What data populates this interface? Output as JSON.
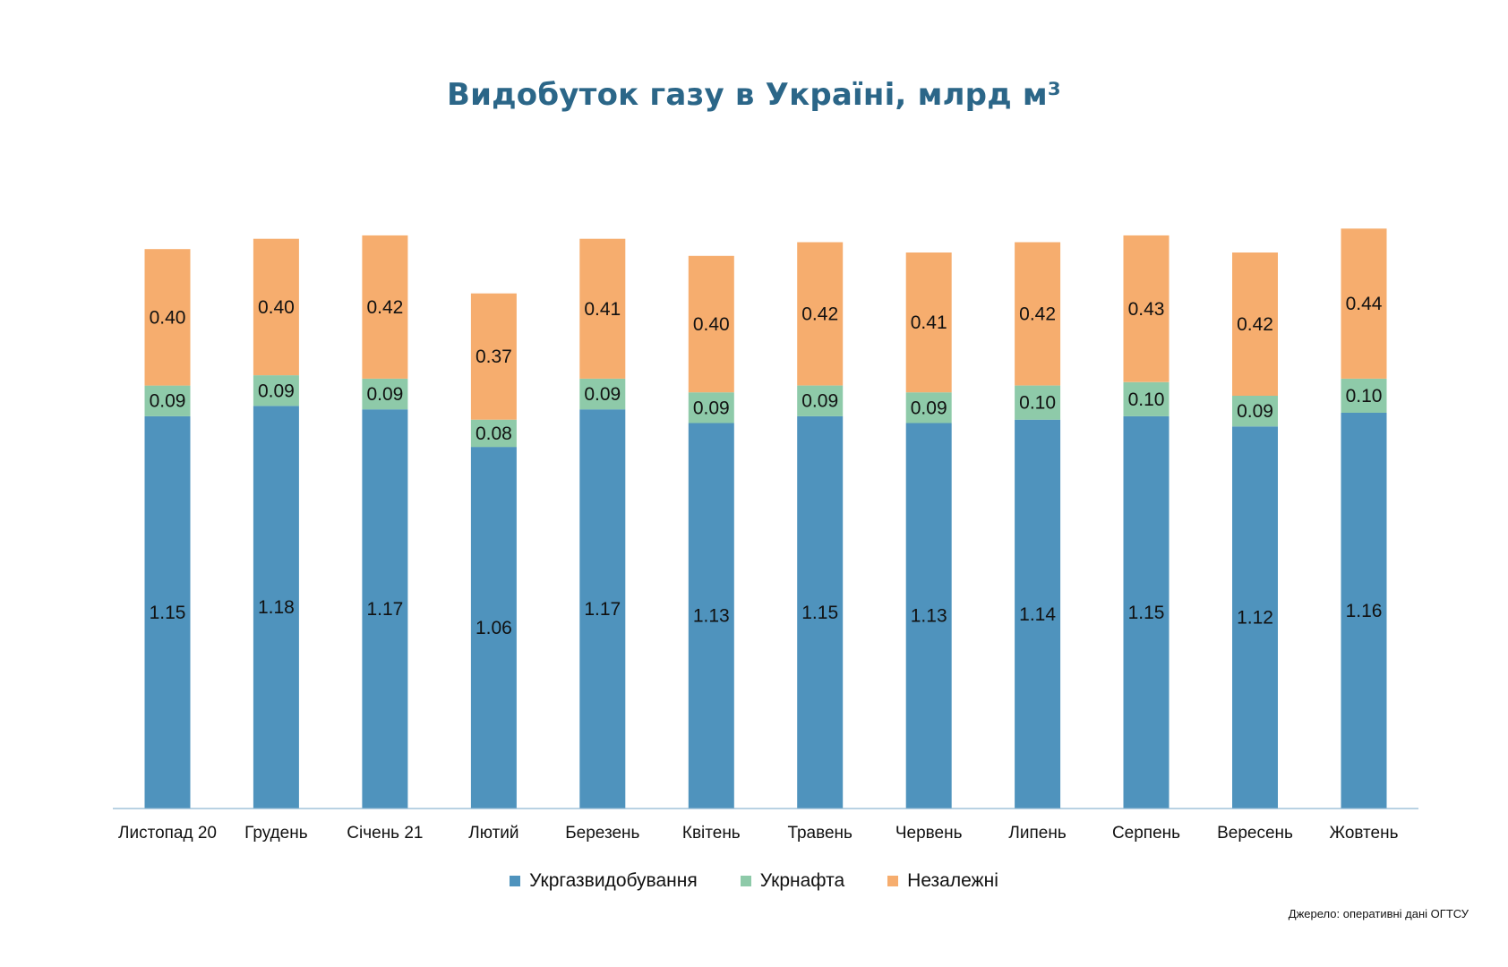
{
  "colors": {
    "title": "#2b6688",
    "axis": "#8fb7d2",
    "label_text": "#111111"
  },
  "legend": [
    {
      "name": "Укргазвидобування",
      "color": "#4f93bd"
    },
    {
      "name": "Укрнафта",
      "color": "#8ecaa9"
    },
    {
      "name": "Незалежні",
      "color": "#f6ad6e"
    }
  ],
  "source": "Джерело: оперативні дані ОГТСУ",
  "chart_data": {
    "type": "bar",
    "stacked": true,
    "title": "Видобуток газу в Україні, млрд м³",
    "xlabel": "",
    "ylabel": "",
    "ylim": [
      0,
      1.75
    ],
    "grid": false,
    "legend_position": "bottom",
    "categories": [
      "Листопад 20",
      "Грудень",
      "Січень 21",
      "Лютий",
      "Березень",
      "Квітень",
      "Травень",
      "Червень",
      "Липень",
      "Серпень",
      "Вересень",
      "Жовтень"
    ],
    "series": [
      {
        "name": "Укргазвидобування",
        "color": "#4f93bd",
        "values": [
          1.15,
          1.18,
          1.17,
          1.06,
          1.17,
          1.13,
          1.15,
          1.13,
          1.14,
          1.15,
          1.12,
          1.16
        ]
      },
      {
        "name": "Укрнафта",
        "color": "#8ecaa9",
        "values": [
          0.09,
          0.09,
          0.09,
          0.08,
          0.09,
          0.09,
          0.09,
          0.09,
          0.1,
          0.1,
          0.09,
          0.1
        ]
      },
      {
        "name": "Незалежні",
        "color": "#f6ad6e",
        "values": [
          0.4,
          0.4,
          0.42,
          0.37,
          0.41,
          0.4,
          0.42,
          0.41,
          0.42,
          0.43,
          0.42,
          0.44
        ]
      }
    ]
  }
}
